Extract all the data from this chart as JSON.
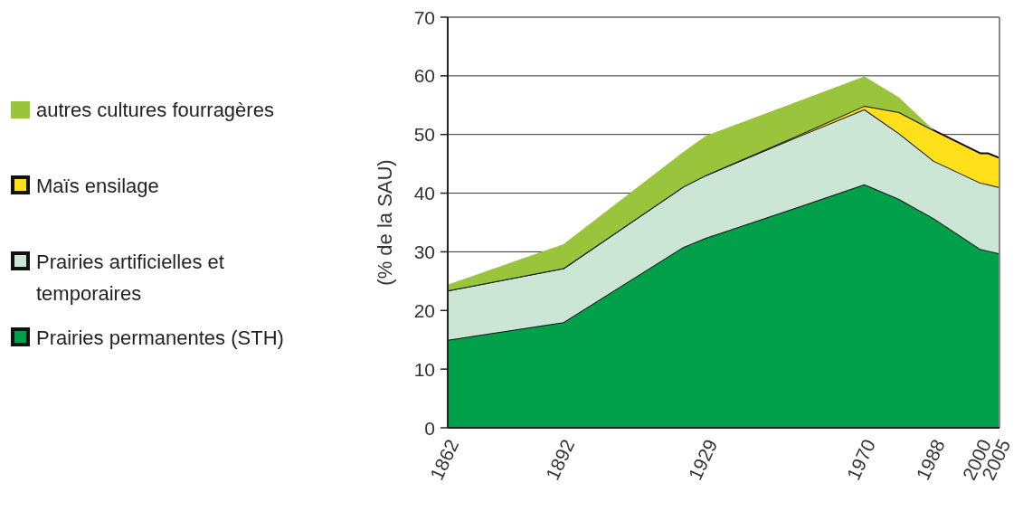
{
  "chart_data": {
    "type": "area",
    "stacked": true,
    "ylabel": "(% de la SAU)",
    "x": [
      1862,
      1892,
      1923,
      1929,
      1953,
      1970,
      1979,
      1988,
      2000,
      2002,
      2005
    ],
    "series": [
      {
        "name": "Prairies permanentes (STH)",
        "color": "#00a04b",
        "values": [
          15,
          18,
          30.8,
          32.4,
          37.7,
          41.5,
          39,
          35.7,
          30.5,
          30.2,
          29.7
        ]
      },
      {
        "name": "Prairies artificielles et temporaires",
        "color": "#cce6d6",
        "values": [
          8.4,
          9.2,
          10.3,
          10.7,
          12,
          12.8,
          11.2,
          9.8,
          11.3,
          11.3,
          11.3
        ]
      },
      {
        "name": "Maïs ensilage",
        "color": "#ffe01a",
        "values": [
          0,
          0,
          0,
          0,
          0.2,
          0.6,
          3.6,
          5.2,
          5,
          5.3,
          5
        ]
      },
      {
        "name": "autres cultures fourragères",
        "color": "#99c43c",
        "values": [
          1,
          4.1,
          5.9,
          6.7,
          5.8,
          5,
          2.5,
          0,
          0,
          0,
          0
        ]
      }
    ],
    "xlim": [
      1862,
      2005
    ],
    "xticks": [
      1862,
      1892,
      1929,
      1970,
      1988,
      2000,
      2005
    ],
    "ylim": [
      0,
      70
    ],
    "yticks": [
      0,
      10,
      20,
      30,
      40,
      50,
      60,
      70
    ],
    "grid": "y",
    "legend": "left"
  }
}
